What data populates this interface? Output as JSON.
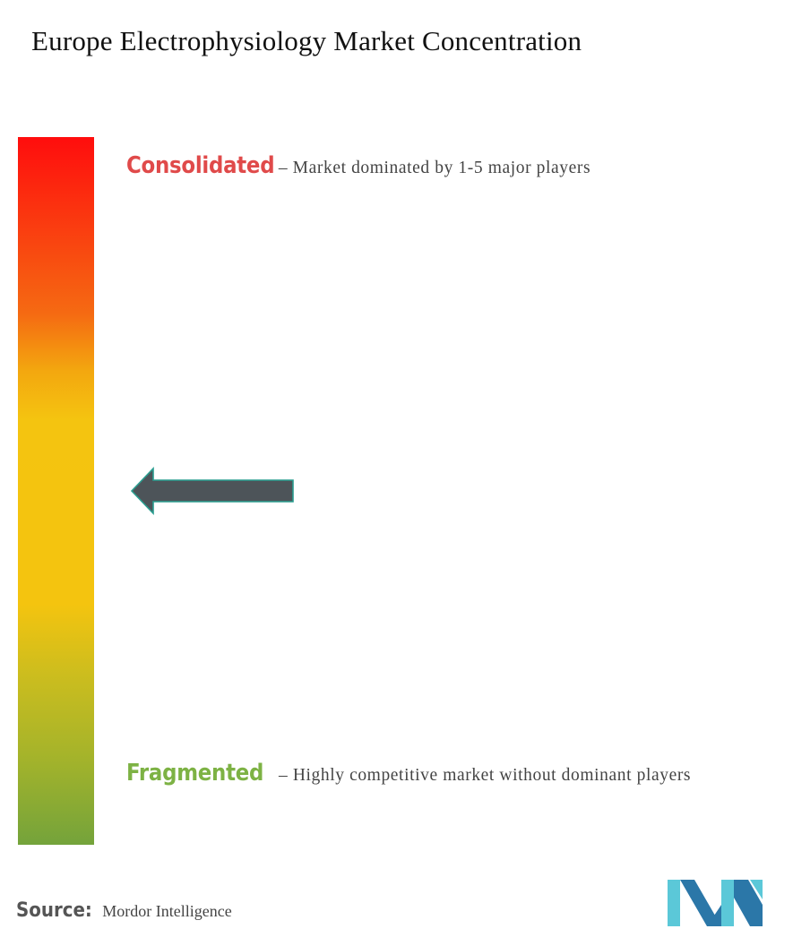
{
  "title": "Europe Electrophysiology Market Concentration",
  "chart_data": {
    "type": "concentration-scale",
    "levels": [
      {
        "name": "Consolidated",
        "description": "– Market dominated by 1-5 major players",
        "color": "#e04a4a"
      },
      {
        "name": "Fragmented",
        "description": "– Highly competitive market without dominant players",
        "color": "#7db244"
      }
    ],
    "gradient_colors": [
      "#ff0d0d",
      "#f56a12",
      "#f4c410",
      "#a3b32b",
      "#74a33b"
    ],
    "indicator_level": 0.5
  },
  "source": {
    "label": "Source:",
    "value": "Mordor Intelligence"
  },
  "colors": {
    "arrow_fill": "#4d5459",
    "arrow_outline": "#2a9d8f",
    "logo_dark": "#2b77a8",
    "logo_light": "#5bc8d8"
  },
  "icons": {
    "logo": "mordor-intelligence-logo-icon",
    "arrow": "left-arrow-icon"
  }
}
